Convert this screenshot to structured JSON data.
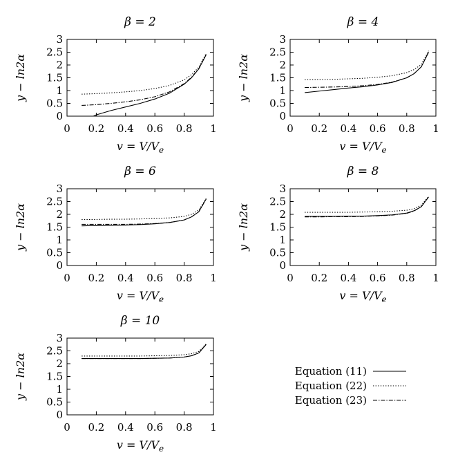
{
  "chart_data": [
    {
      "type": "line",
      "title": "β = 2",
      "xlabel": "v = V/V_e",
      "ylabel": "y − ln2α",
      "xlim": [
        0,
        1
      ],
      "ylim": [
        0,
        3
      ],
      "xticks": [
        "0",
        "0.2",
        "0.4",
        "0.6",
        "0.8",
        "1"
      ],
      "yticks": [
        "0",
        "0.5",
        "1",
        "1.5",
        "2",
        "2.5",
        "3"
      ],
      "grid": false,
      "series": [
        {
          "name": "Equation (11)",
          "style": "solid",
          "x": [
            0.18,
            0.2,
            0.3,
            0.4,
            0.5,
            0.6,
            0.7,
            0.8,
            0.85,
            0.9,
            0.95
          ],
          "y": [
            0.0,
            0.05,
            0.22,
            0.36,
            0.5,
            0.67,
            0.9,
            1.25,
            1.5,
            1.85,
            2.4
          ]
        },
        {
          "name": "Equation (22)",
          "style": "dotted",
          "x": [
            0.1,
            0.2,
            0.3,
            0.4,
            0.5,
            0.6,
            0.7,
            0.8,
            0.85,
            0.9,
            0.95
          ],
          "y": [
            0.86,
            0.88,
            0.91,
            0.95,
            1.0,
            1.08,
            1.2,
            1.42,
            1.62,
            1.92,
            2.45
          ]
        },
        {
          "name": "Equation (23)",
          "style": "dashdot",
          "x": [
            0.1,
            0.2,
            0.3,
            0.4,
            0.5,
            0.6,
            0.7,
            0.8,
            0.85,
            0.9,
            0.95
          ],
          "y": [
            0.42,
            0.45,
            0.5,
            0.56,
            0.64,
            0.76,
            0.95,
            1.27,
            1.52,
            1.86,
            2.42
          ]
        }
      ]
    },
    {
      "type": "line",
      "title": "β = 4",
      "xlabel": "v = V/V_e",
      "ylabel": "y − ln2α",
      "xlim": [
        0,
        1
      ],
      "ylim": [
        0,
        3
      ],
      "xticks": [
        "0",
        "0.2",
        "0.4",
        "0.6",
        "0.8",
        "1"
      ],
      "yticks": [
        "0",
        "0.5",
        "1",
        "1.5",
        "2",
        "2.5",
        "3"
      ],
      "grid": false,
      "series": [
        {
          "name": "Equation (11)",
          "style": "solid",
          "x": [
            0.1,
            0.2,
            0.3,
            0.4,
            0.5,
            0.6,
            0.7,
            0.8,
            0.85,
            0.9,
            0.95
          ],
          "y": [
            0.92,
            0.98,
            1.04,
            1.1,
            1.15,
            1.22,
            1.32,
            1.5,
            1.66,
            1.93,
            2.5
          ]
        },
        {
          "name": "Equation (22)",
          "style": "dotted",
          "x": [
            0.1,
            0.2,
            0.3,
            0.4,
            0.5,
            0.6,
            0.7,
            0.8,
            0.85,
            0.9,
            0.95
          ],
          "y": [
            1.42,
            1.43,
            1.44,
            1.46,
            1.48,
            1.52,
            1.58,
            1.7,
            1.82,
            2.02,
            2.55
          ]
        },
        {
          "name": "Equation (23)",
          "style": "dashdot",
          "x": [
            0.1,
            0.2,
            0.3,
            0.4,
            0.5,
            0.6,
            0.7,
            0.8,
            0.85,
            0.9,
            0.95
          ],
          "y": [
            1.12,
            1.13,
            1.14,
            1.16,
            1.19,
            1.24,
            1.33,
            1.5,
            1.66,
            1.93,
            2.5
          ]
        }
      ]
    },
    {
      "type": "line",
      "title": "β = 6",
      "xlabel": "v = V/V_e",
      "ylabel": "y − ln2α",
      "xlim": [
        0,
        1
      ],
      "ylim": [
        0,
        3
      ],
      "xticks": [
        "0",
        "0.2",
        "0.4",
        "0.6",
        "0.8",
        "1"
      ],
      "yticks": [
        "0",
        "0.5",
        "1",
        "1.5",
        "2",
        "2.5",
        "3"
      ],
      "grid": false,
      "series": [
        {
          "name": "Equation (11)",
          "style": "solid",
          "x": [
            0.1,
            0.2,
            0.3,
            0.4,
            0.5,
            0.6,
            0.7,
            0.8,
            0.85,
            0.9,
            0.95
          ],
          "y": [
            1.55,
            1.56,
            1.57,
            1.58,
            1.6,
            1.63,
            1.68,
            1.78,
            1.9,
            2.1,
            2.6
          ]
        },
        {
          "name": "Equation (22)",
          "style": "dotted",
          "x": [
            0.1,
            0.2,
            0.3,
            0.4,
            0.5,
            0.6,
            0.7,
            0.8,
            0.85,
            0.9,
            0.95
          ],
          "y": [
            1.8,
            1.8,
            1.81,
            1.81,
            1.82,
            1.84,
            1.86,
            1.92,
            2.0,
            2.17,
            2.62
          ]
        },
        {
          "name": "Equation (23)",
          "style": "dashdot",
          "x": [
            0.1,
            0.2,
            0.3,
            0.4,
            0.5,
            0.6,
            0.7,
            0.8,
            0.85,
            0.9,
            0.95
          ],
          "y": [
            1.61,
            1.61,
            1.61,
            1.61,
            1.62,
            1.64,
            1.68,
            1.78,
            1.9,
            2.1,
            2.6
          ]
        }
      ]
    },
    {
      "type": "line",
      "title": "β = 8",
      "xlabel": "v = V/V_e",
      "ylabel": "y − ln2α",
      "xlim": [
        0,
        1
      ],
      "ylim": [
        0,
        3
      ],
      "xticks": [
        "0",
        "0.2",
        "0.4",
        "0.6",
        "0.8",
        "1"
      ],
      "yticks": [
        "0",
        "0.5",
        "1",
        "1.5",
        "2",
        "2.5",
        "3"
      ],
      "grid": false,
      "series": [
        {
          "name": "Equation (11)",
          "style": "solid",
          "x": [
            0.1,
            0.2,
            0.3,
            0.4,
            0.5,
            0.6,
            0.7,
            0.8,
            0.85,
            0.9,
            0.95
          ],
          "y": [
            1.92,
            1.92,
            1.92,
            1.93,
            1.93,
            1.95,
            1.98,
            2.05,
            2.14,
            2.3,
            2.68
          ]
        },
        {
          "name": "Equation (22)",
          "style": "dotted",
          "x": [
            0.1,
            0.2,
            0.3,
            0.4,
            0.5,
            0.6,
            0.7,
            0.8,
            0.85,
            0.9,
            0.95
          ],
          "y": [
            2.08,
            2.08,
            2.08,
            2.08,
            2.09,
            2.1,
            2.12,
            2.16,
            2.22,
            2.36,
            2.7
          ]
        },
        {
          "name": "Equation (23)",
          "style": "dashdot",
          "x": [
            0.1,
            0.2,
            0.3,
            0.4,
            0.5,
            0.6,
            0.7,
            0.8,
            0.85,
            0.9,
            0.95
          ],
          "y": [
            1.9,
            1.9,
            1.91,
            1.91,
            1.92,
            1.94,
            1.97,
            2.04,
            2.13,
            2.3,
            2.68
          ]
        }
      ]
    },
    {
      "type": "line",
      "title": "β = 10",
      "xlabel": "v = V/V_e",
      "ylabel": "y − ln2α",
      "xlim": [
        0,
        1
      ],
      "ylim": [
        0,
        3
      ],
      "xticks": [
        "0",
        "0.2",
        "0.4",
        "0.6",
        "0.8",
        "1"
      ],
      "yticks": [
        "0",
        "0.5",
        "1",
        "1.5",
        "2",
        "2.5",
        "3"
      ],
      "grid": false,
      "series": [
        {
          "name": "Equation (11)",
          "style": "solid",
          "x": [
            0.1,
            0.2,
            0.3,
            0.4,
            0.5,
            0.6,
            0.7,
            0.8,
            0.85,
            0.9,
            0.95
          ],
          "y": [
            2.2,
            2.2,
            2.2,
            2.2,
            2.2,
            2.21,
            2.22,
            2.26,
            2.31,
            2.42,
            2.75
          ]
        },
        {
          "name": "Equation (22)",
          "style": "dotted",
          "x": [
            0.1,
            0.2,
            0.3,
            0.4,
            0.5,
            0.6,
            0.7,
            0.8,
            0.85,
            0.9,
            0.95
          ],
          "y": [
            2.3,
            2.3,
            2.3,
            2.3,
            2.3,
            2.31,
            2.32,
            2.35,
            2.39,
            2.48,
            2.77
          ]
        },
        {
          "name": "Equation (23)",
          "style": "dashdot",
          "x": [
            0.1,
            0.2,
            0.3,
            0.4,
            0.5,
            0.6,
            0.7,
            0.8,
            0.85,
            0.9,
            0.95
          ],
          "y": [
            2.2,
            2.2,
            2.2,
            2.2,
            2.2,
            2.21,
            2.22,
            2.26,
            2.31,
            2.42,
            2.75
          ]
        }
      ]
    }
  ],
  "legend": {
    "placement": "bottom-right",
    "entries": [
      {
        "label": "Equation (11)",
        "style": "solid"
      },
      {
        "label": "Equation (22)",
        "style": "dotted"
      },
      {
        "label": "Equation (23)",
        "style": "dashdot"
      }
    ]
  }
}
